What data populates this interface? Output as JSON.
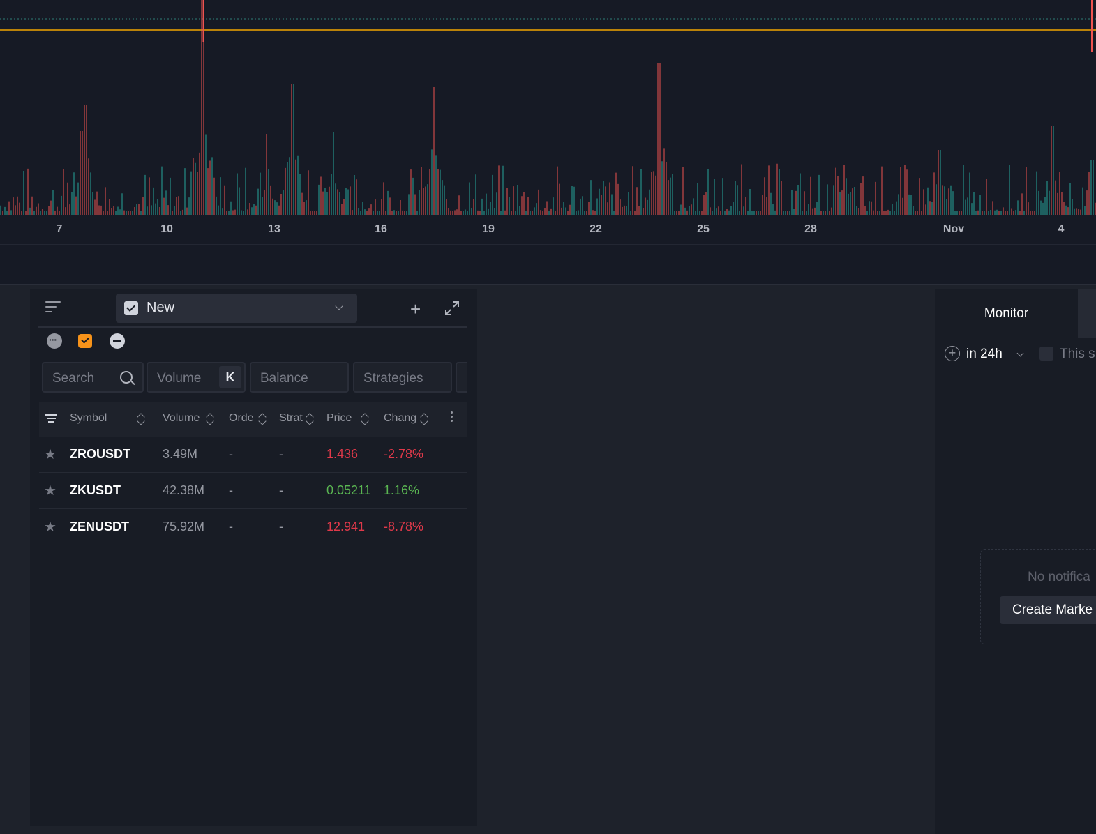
{
  "chart": {
    "x_ticks": [
      "7",
      "10",
      "13",
      "16",
      "19",
      "22",
      "25",
      "28",
      "Nov",
      "4"
    ],
    "colors": {
      "up": "#26a69a",
      "down": "#ef5350",
      "price_line": "#f0a500",
      "dotted_line": "#2e7d78"
    }
  },
  "watchlist": {
    "list_name": "New",
    "filters": {
      "search_placeholder": "Search",
      "volume_placeholder": "Volume",
      "volume_unit": "K",
      "balance_placeholder": "Balance",
      "strategies_placeholder": "Strategies"
    },
    "columns": {
      "symbol": "Symbol",
      "volume": "Volume",
      "orders": "Orde",
      "strategies": "Strat",
      "price": "Price",
      "change": "Chang"
    },
    "rows": [
      {
        "symbol": "ZROUSDT",
        "volume": "3.49M",
        "orders": "-",
        "strategies": "-",
        "price": "1.436",
        "change": "-2.78%",
        "trend": "down"
      },
      {
        "symbol": "ZKUSDT",
        "volume": "42.38M",
        "orders": "-",
        "strategies": "-",
        "price": "0.05211",
        "change": "1.16%",
        "trend": "up"
      },
      {
        "symbol": "ZENUSDT",
        "volume": "75.92M",
        "orders": "-",
        "strategies": "-",
        "price": "12.941",
        "change": "-8.78%",
        "trend": "down"
      }
    ]
  },
  "monitor": {
    "tab_label": "Monitor",
    "time_filter": "in 24h",
    "checkbox_label": "This s",
    "empty_text": "No notifica",
    "create_button": "Create Marke"
  }
}
